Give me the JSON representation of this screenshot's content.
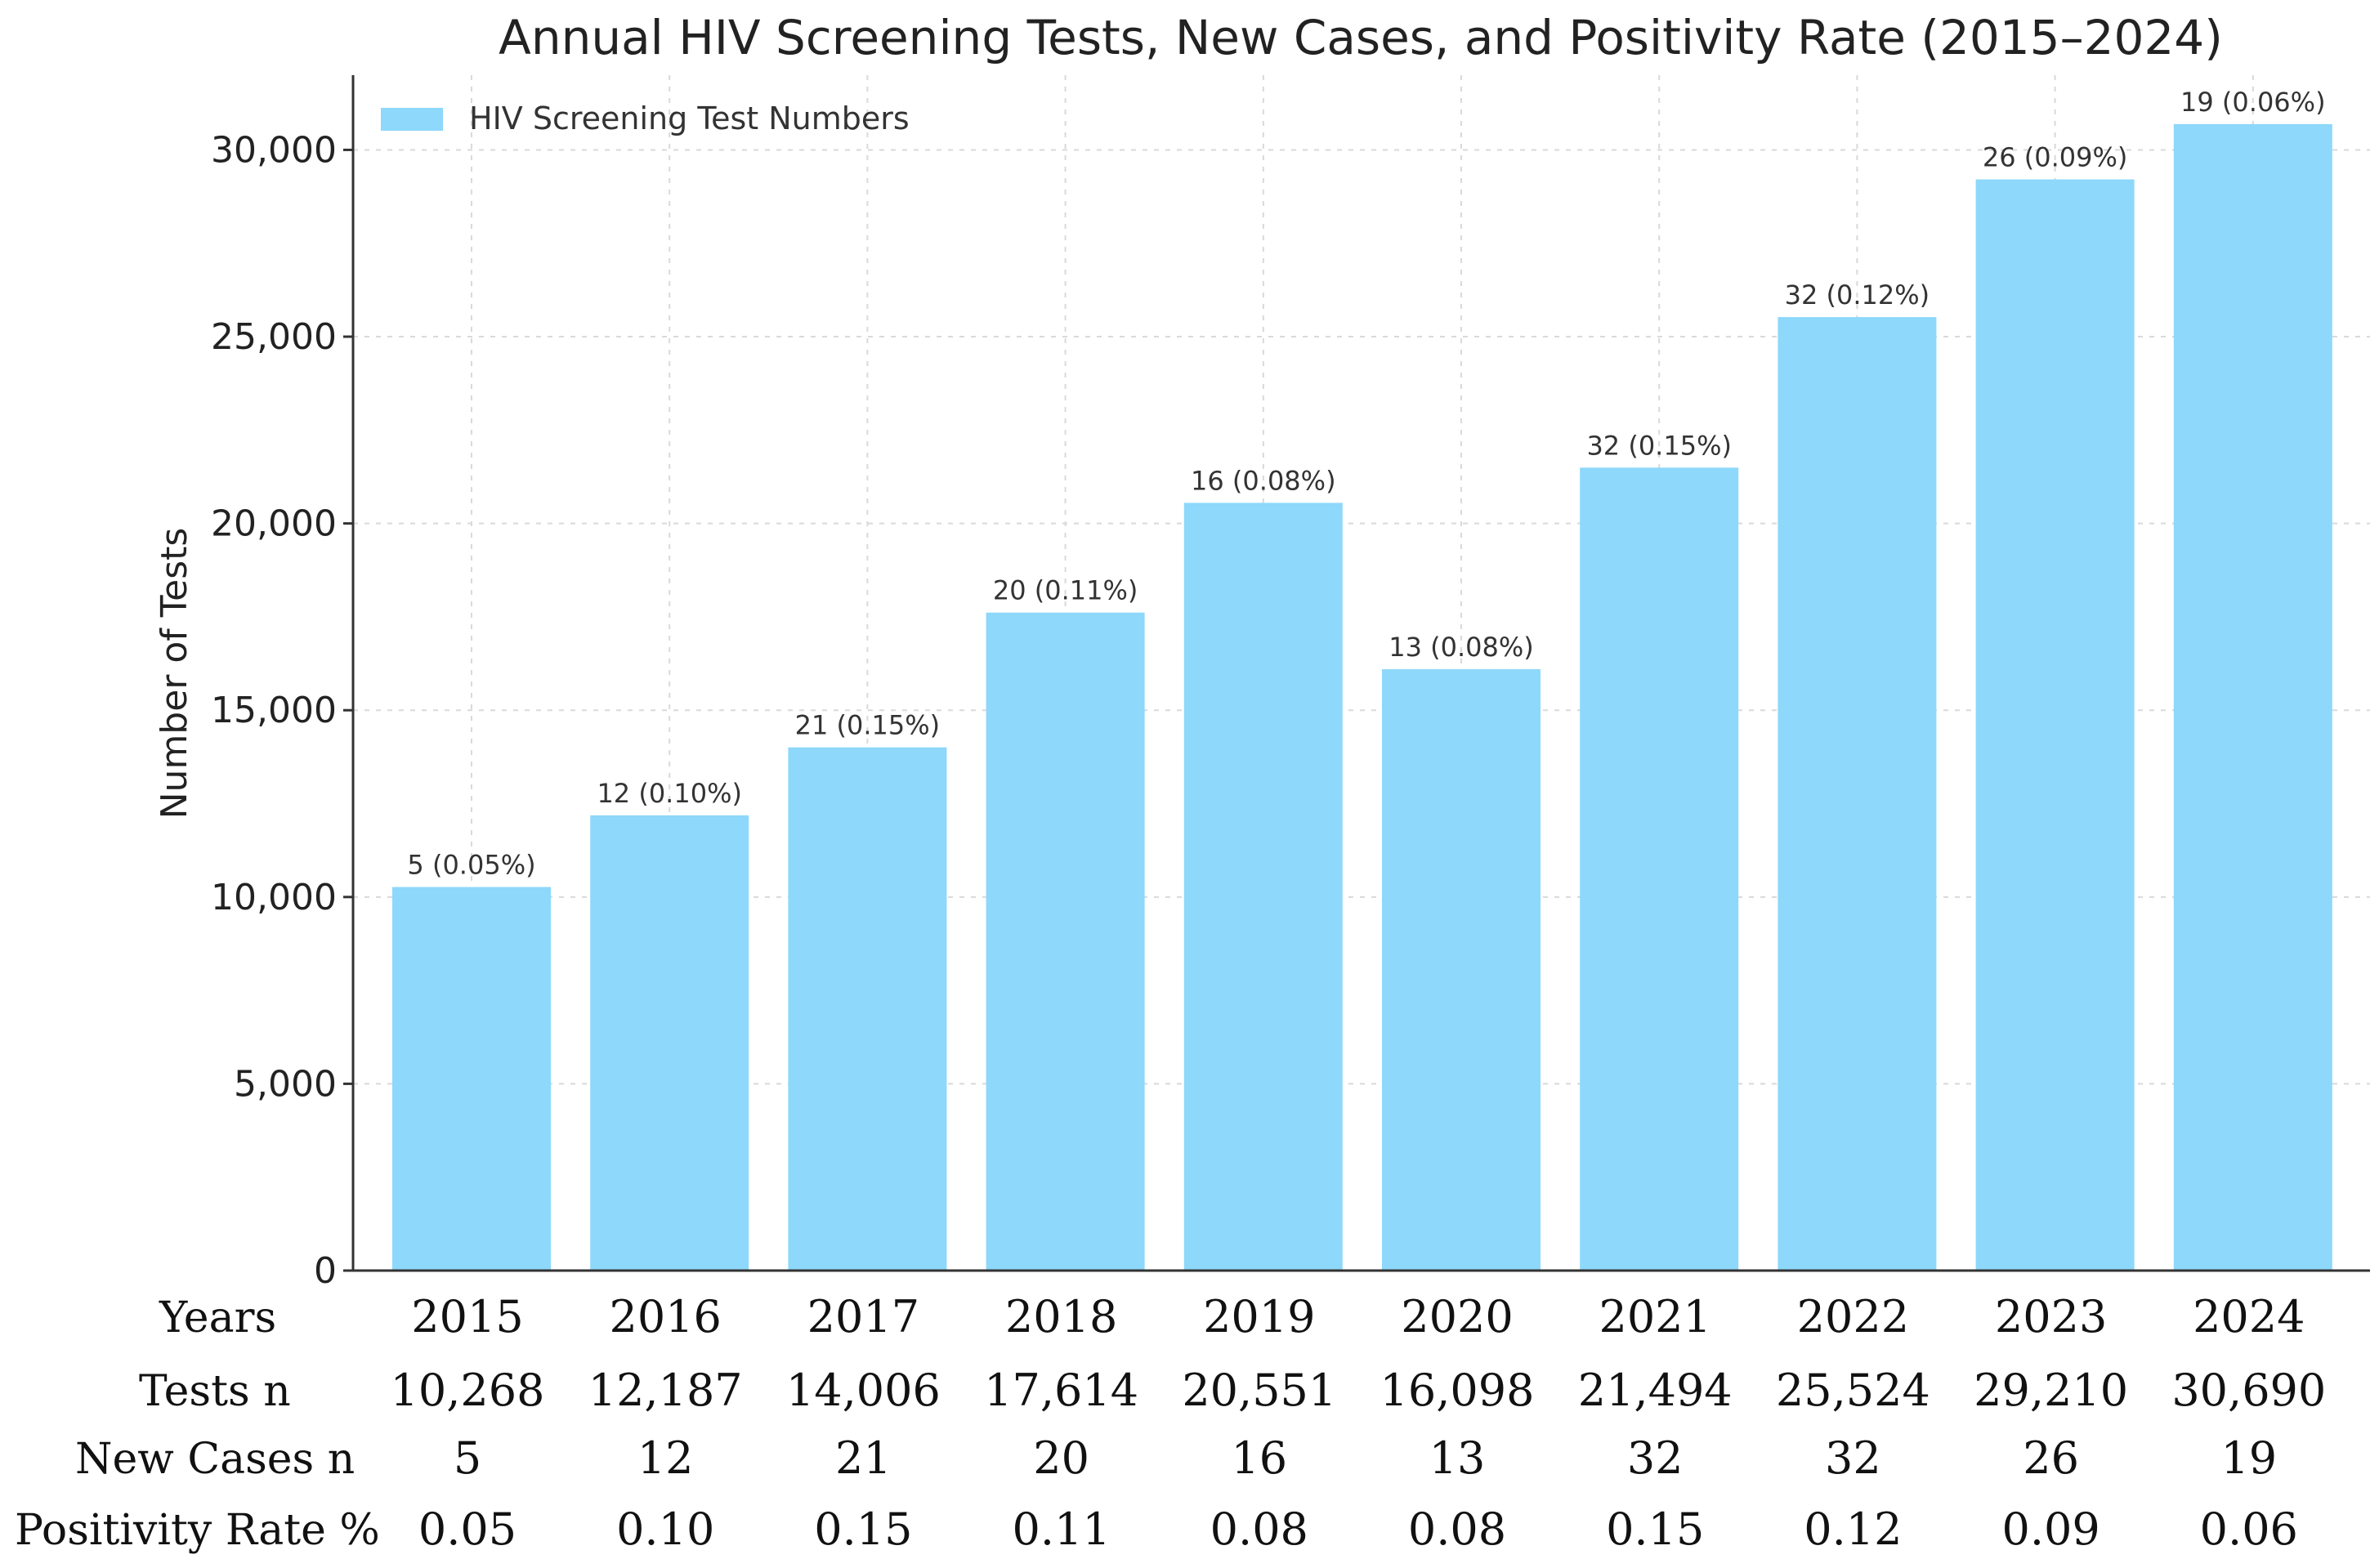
{
  "chart_data": {
    "type": "bar",
    "title": "Annual HIV Screening Tests, New Cases, and Positivity Rate (2015–2024)",
    "xlabel": "",
    "ylabel": "Number of Tests",
    "ylim": [
      0,
      32000
    ],
    "yticks": [
      0,
      5000,
      10000,
      15000,
      20000,
      25000,
      30000
    ],
    "ytick_labels": [
      "0",
      "5,000",
      "10,000",
      "15,000",
      "20,000",
      "25,000",
      "30,000"
    ],
    "grid": true,
    "legend_position": "top-left",
    "bar_color": "#8dd8fb",
    "categories": [
      "2015",
      "2016",
      "2017",
      "2018",
      "2019",
      "2020",
      "2021",
      "2022",
      "2023",
      "2024"
    ],
    "series": [
      {
        "name": "HIV Screening Test Numbers",
        "values": [
          10268,
          12187,
          14006,
          17614,
          20551,
          16098,
          21494,
          25524,
          29210,
          30690
        ]
      }
    ],
    "data_labels": [
      "5 (0.05%)",
      "12 (0.10%)",
      "21 (0.15%)",
      "20 (0.11%)",
      "16 (0.08%)",
      "13 (0.08%)",
      "32 (0.15%)",
      "32 (0.12%)",
      "26 (0.09%)",
      "19 (0.06%)"
    ]
  },
  "table": {
    "row_headers": [
      "Years",
      "Tests n",
      "New Cases n",
      "Positivity Rate %"
    ],
    "rows": [
      [
        "2015",
        "2016",
        "2017",
        "2018",
        "2019",
        "2020",
        "2021",
        "2022",
        "2023",
        "2024"
      ],
      [
        "10,268",
        "12,187",
        "14,006",
        "17,614",
        "20,551",
        "16,098",
        "21,494",
        "25,524",
        "29,210",
        "30,690"
      ],
      [
        "5",
        "12",
        "21",
        "20",
        "16",
        "13",
        "32",
        "32",
        "26",
        "19"
      ],
      [
        "0.05",
        "0.10",
        "0.15",
        "0.11",
        "0.08",
        "0.08",
        "0.15",
        "0.12",
        "0.09",
        "0.06"
      ]
    ]
  }
}
